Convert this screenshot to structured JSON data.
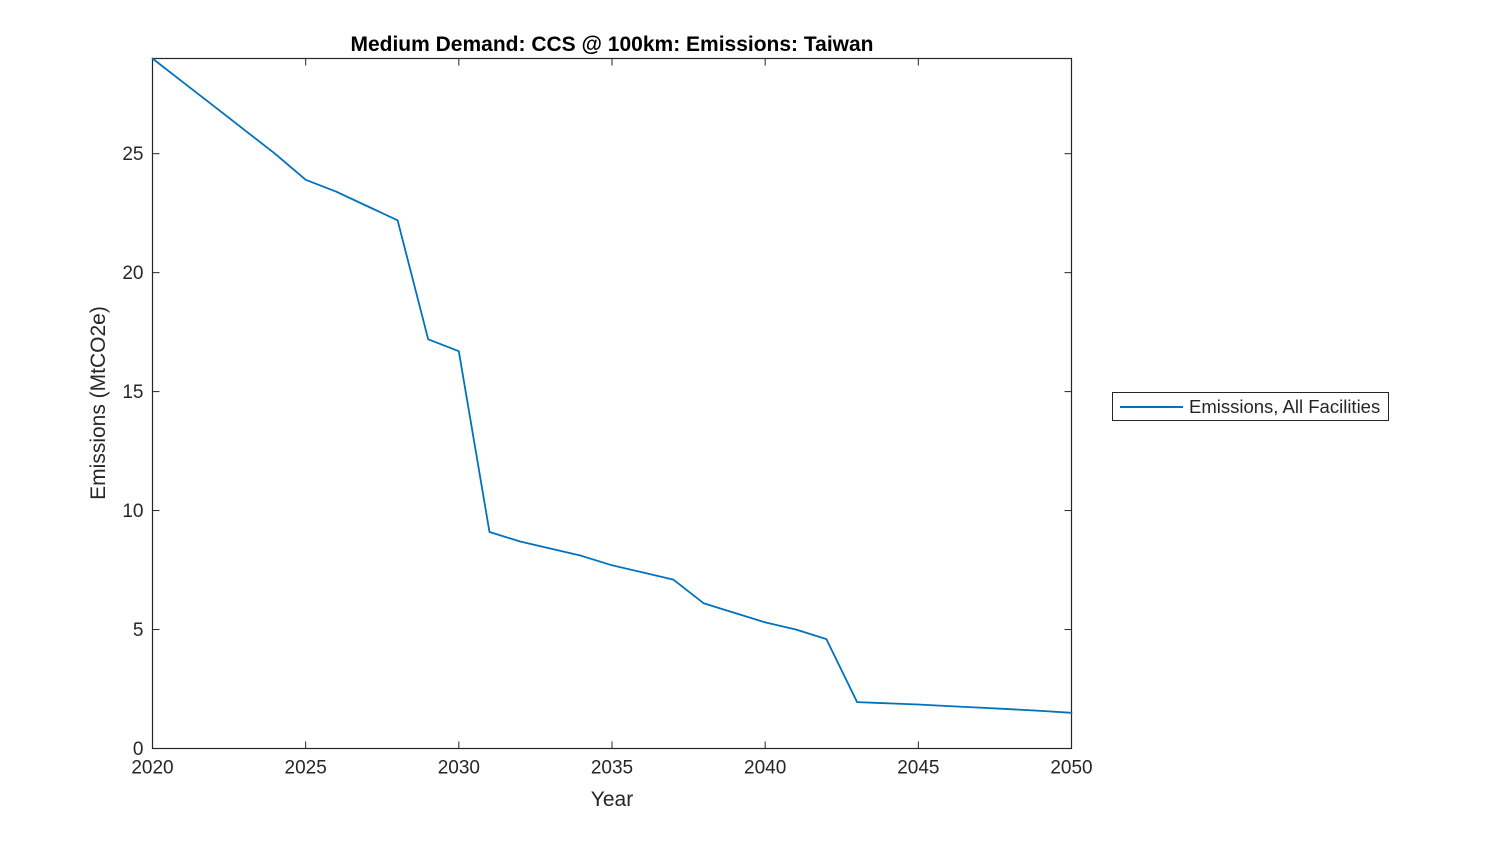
{
  "chart": {
    "title": "Medium Demand: CCS @ 100km: Emissions: Taiwan",
    "xlabel": "Year",
    "ylabel": "Emissions (MtCO2e)",
    "legend_label": "Emissions, All Facilities"
  },
  "chart_data": {
    "type": "line",
    "title": "Medium Demand: CCS @ 100km: Emissions: Taiwan",
    "xlabel": "Year",
    "ylabel": "Emissions (MtCO2e)",
    "legend": [
      "Emissions, All Facilities"
    ],
    "legend_position": "outside-right",
    "grid": false,
    "box": true,
    "xlim": [
      2020,
      2050
    ],
    "ylim": [
      0,
      29
    ],
    "x_ticks": [
      2020,
      2025,
      2030,
      2035,
      2040,
      2045,
      2050
    ],
    "y_ticks": [
      0,
      5,
      10,
      15,
      20,
      25
    ],
    "line_color": "#0072BD",
    "axis_color": "#262626",
    "series": [
      {
        "name": "Emissions, All Facilities",
        "x": [
          2020,
          2021,
          2022,
          2023,
          2024,
          2025,
          2026,
          2027,
          2028,
          2029,
          2030,
          2031,
          2032,
          2033,
          2034,
          2035,
          2036,
          2037,
          2038,
          2039,
          2040,
          2041,
          2042,
          2043,
          2044,
          2045,
          2046,
          2047,
          2048,
          2049,
          2050
        ],
        "values": [
          29.0,
          28.0,
          27.0,
          26.0,
          25.0,
          23.9,
          23.4,
          22.8,
          22.2,
          17.2,
          16.7,
          9.1,
          8.7,
          8.4,
          8.1,
          7.7,
          7.4,
          7.1,
          6.1,
          5.7,
          5.3,
          5.0,
          4.6,
          1.95,
          1.9,
          1.85,
          1.78,
          1.72,
          1.65,
          1.58,
          1.5
        ]
      }
    ]
  }
}
